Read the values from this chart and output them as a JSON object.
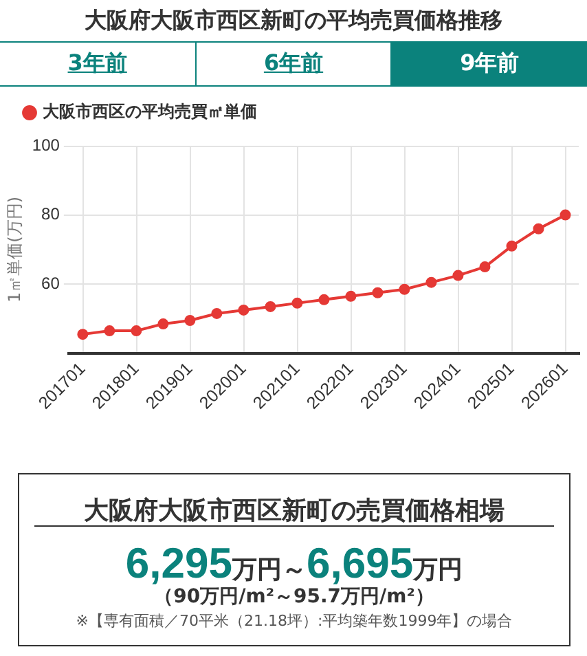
{
  "chart_data": [
    {
      "type": "line",
      "title": "大阪府大阪市西区新町の平均売買価格推移",
      "annotations": [
        "3年前",
        "6年前",
        "9年前"
      ],
      "ylabel": "1㎡単価(万円)",
      "categories": [
        "201701",
        null,
        "201801",
        null,
        "201901",
        null,
        "202001",
        null,
        "202101",
        null,
        "202201",
        null,
        "202301",
        null,
        "202401",
        null,
        "202501",
        null,
        "202601"
      ],
      "series": [
        {
          "name": "大阪市西区の平均売買㎡単価",
          "color": "#e53935",
          "values": [
            45.5,
            46.5,
            46.5,
            48.5,
            49.5,
            51.5,
            52.5,
            53.5,
            54.5,
            55.5,
            56.5,
            57.5,
            58.5,
            60.5,
            62.5,
            65,
            71,
            76,
            80
          ]
        }
      ],
      "ylim": [
        40,
        100
      ],
      "yticks": [
        60,
        80,
        100
      ],
      "grid": true,
      "legend": "top left",
      "marker": "circle",
      "line_style": "solid"
    },
    {
      "type": "other",
      "title": "大阪府大阪市西区新町の売買価格相場",
      "annotations": [
        "6,295万円～6,695万円",
        "（90万円/m²～95.7万円/m²）",
        "※【専有面積／70平米（21.18坪）:平均築年数1999年】の場合"
      ]
    }
  ]
}
